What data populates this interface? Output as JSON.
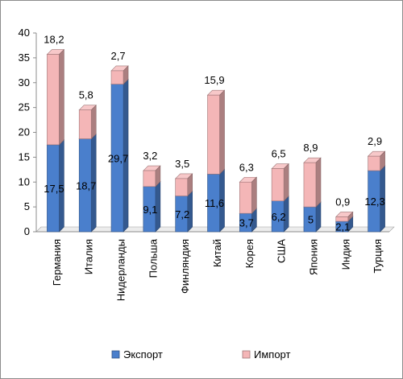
{
  "chart_data": {
    "type": "bar",
    "stacked": true,
    "style": "3d-stacked-column",
    "categories": [
      "Германия",
      "Италия",
      "Нидерланды",
      "Польша",
      "Финляндия",
      "Китай",
      "Корея",
      "США",
      "Япония",
      "Индия",
      "Турция"
    ],
    "series": [
      {
        "name": "Экспорт",
        "color": "#4a7fcc",
        "values": [
          17.5,
          18.7,
          29.7,
          9.1,
          7.2,
          11.6,
          3.7,
          6.2,
          5,
          2.1,
          12.3
        ],
        "labels": [
          "17,5",
          "18,7",
          "29,7",
          "9,1",
          "7,2",
          "11,6",
          "3,7",
          "6,2",
          "5",
          "2,1",
          "12,3"
        ]
      },
      {
        "name": "Импорт",
        "color": "#f4b6b7",
        "values": [
          18.2,
          5.8,
          2.7,
          3.2,
          3.5,
          15.9,
          6.3,
          6.5,
          8.9,
          0.9,
          2.9
        ],
        "labels": [
          "18,2",
          "5,8",
          "2,7",
          "3,2",
          "3,5",
          "15,9",
          "6,3",
          "6,5",
          "8,9",
          "0,9",
          "2,9"
        ]
      }
    ],
    "y_ticks": [
      "0",
      "5",
      "10",
      "15",
      "20",
      "25",
      "30",
      "35",
      "40"
    ],
    "ylim": [
      0,
      40
    ],
    "title": "",
    "xlabel": "",
    "ylabel": "",
    "grid": false,
    "legend_position": "bottom"
  }
}
